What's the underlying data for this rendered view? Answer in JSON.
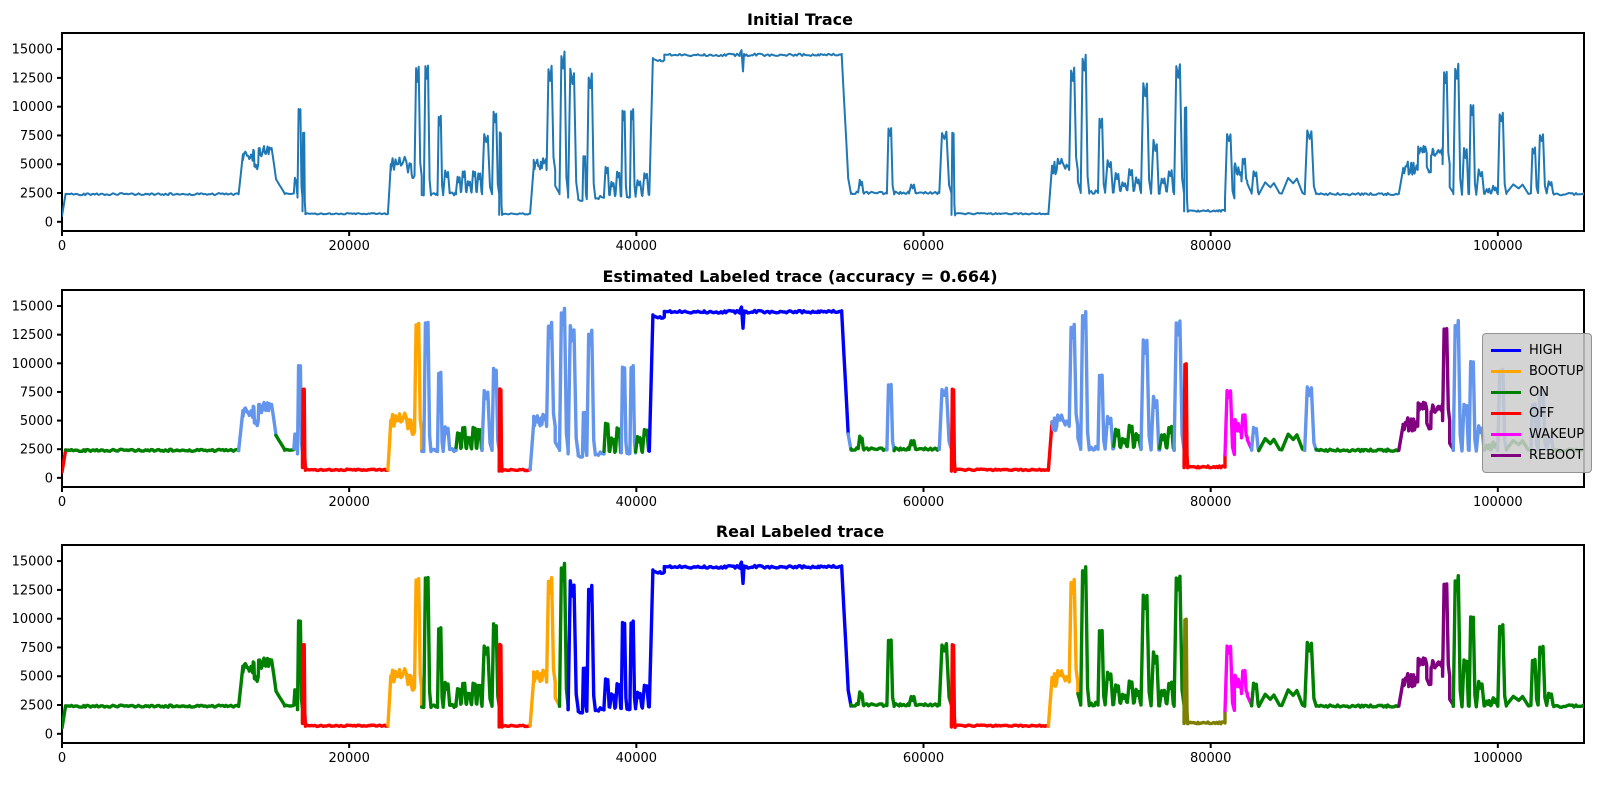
{
  "figure": {
    "background": "#ffffff"
  },
  "charts": [
    {
      "id": "initial",
      "title": "Initial Trace",
      "mode": "single"
    },
    {
      "id": "estimated",
      "title": "Estimated Labeled trace (accuracy = 0.664)",
      "mode": "est"
    },
    {
      "id": "real",
      "title": "Real Labeled trace",
      "mode": "real"
    }
  ],
  "chart_data": {
    "type": "line",
    "title_top": "Initial Trace",
    "title_mid": "Estimated Labeled trace (accuracy = 0.664)",
    "title_bottom": "Real Labeled trace",
    "accuracy": 0.664,
    "xlim": [
      0,
      106000
    ],
    "ylim": [
      -800,
      16400
    ],
    "xticks": [
      0,
      20000,
      40000,
      60000,
      80000,
      100000
    ],
    "yticks": [
      0,
      2500,
      5000,
      7500,
      10000,
      12500,
      15000
    ],
    "grid": false,
    "legend_position": "right",
    "initial_color": "#1f77b4",
    "class_colors": {
      "H": "#0000ff",
      "B": "#ffa500",
      "O": "#008000",
      "F": "#ff0000",
      "W": "#ff00ff",
      "R": "#800080",
      "L": "#6495ed",
      "Y": "#808000"
    },
    "legend": [
      {
        "label": "HIGH",
        "key": "H"
      },
      {
        "label": "BOOTUP",
        "key": "B"
      },
      {
        "label": "ON",
        "key": "O"
      },
      {
        "label": "OFF",
        "key": "F"
      },
      {
        "label": "WAKEUP",
        "key": "W"
      },
      {
        "label": "REBOOT",
        "key": "R"
      }
    ],
    "segments": [
      [
        0,
        250,
        "ramp",
        500,
        2400,
        "F",
        "O"
      ],
      [
        250,
        12300,
        "flat",
        2400,
        90,
        "O",
        "O"
      ],
      [
        12300,
        12600,
        "ramp",
        2400,
        5900,
        "L",
        "O"
      ],
      [
        12600,
        13400,
        "noisy",
        5300,
        6300,
        "L",
        "O"
      ],
      [
        13400,
        13700,
        "noisy",
        4500,
        5100,
        "L",
        "O"
      ],
      [
        13700,
        14600,
        "noisy",
        5600,
        6600,
        "L",
        "O"
      ],
      [
        14600,
        14900,
        "ramp",
        6400,
        3800,
        "L",
        "O"
      ],
      [
        14900,
        15500,
        "ramp",
        3700,
        2450,
        "O",
        "O"
      ],
      [
        15500,
        16150,
        "flat",
        2450,
        100,
        "O",
        "O"
      ],
      [
        16150,
        16400,
        "bumps",
        2500,
        [
          3800
        ],
        "L",
        "O"
      ],
      [
        16400,
        16750,
        "spike",
        2100,
        10000,
        "L",
        "O"
      ],
      [
        16750,
        16950,
        "spike",
        900,
        7800,
        "F",
        "F"
      ],
      [
        16950,
        22700,
        "flat",
        700,
        60,
        "F",
        "F"
      ],
      [
        22700,
        22900,
        "ramp",
        700,
        5000,
        "B",
        "B"
      ],
      [
        22900,
        24350,
        "noisy",
        4200,
        5800,
        "B",
        "B"
      ],
      [
        24350,
        24550,
        "noisy",
        3800,
        4600,
        "B",
        "B"
      ],
      [
        24550,
        25050,
        "spike",
        4000,
        13500,
        "B",
        "B"
      ],
      [
        25050,
        25200,
        "flat",
        2300,
        120,
        "L",
        "O"
      ],
      [
        25200,
        25700,
        "spike",
        2300,
        13800,
        "L",
        "O"
      ],
      [
        25700,
        26150,
        "flat",
        2350,
        160,
        "L",
        "O"
      ],
      [
        26150,
        26550,
        "spike",
        2300,
        9300,
        "L",
        "O"
      ],
      [
        26550,
        27050,
        "bumps",
        2400,
        [
          4400
        ],
        "L",
        "O"
      ],
      [
        27050,
        27450,
        "flat",
        2400,
        150,
        "L",
        "O"
      ],
      [
        27450,
        29250,
        "bumps",
        2600,
        [
          3900,
          4400,
          3600,
          4500,
          4200
        ],
        "O",
        "O"
      ],
      [
        29250,
        29950,
        "spike",
        2400,
        7700,
        "L",
        "O"
      ],
      [
        29950,
        30450,
        "spike",
        2400,
        9600,
        "L",
        "O"
      ],
      [
        30450,
        30650,
        "spike",
        600,
        7800,
        "F",
        "F"
      ],
      [
        30650,
        32600,
        "flat",
        700,
        60,
        "F",
        "F"
      ],
      [
        32600,
        32850,
        "ramp",
        700,
        4800,
        "L",
        "B"
      ],
      [
        32850,
        33750,
        "noisy",
        4300,
        5600,
        "L",
        "B"
      ],
      [
        33750,
        34350,
        "spike",
        4500,
        13600,
        "L",
        "B"
      ],
      [
        34350,
        34650,
        "ramp",
        3100,
        2500,
        "L",
        "B"
      ],
      [
        34650,
        35250,
        "spike",
        2400,
        14800,
        "L",
        "O"
      ],
      [
        35250,
        35950,
        "spike",
        2100,
        13300,
        "L",
        "H"
      ],
      [
        35950,
        36250,
        "flat",
        1900,
        160,
        "L",
        "H"
      ],
      [
        36250,
        36550,
        "spike",
        2000,
        5800,
        "L",
        "H"
      ],
      [
        36550,
        37150,
        "spike",
        2000,
        12900,
        "L",
        "H"
      ],
      [
        37150,
        37750,
        "flat",
        2100,
        200,
        "L",
        "H"
      ],
      [
        37750,
        38950,
        "bumps",
        2300,
        [
          4800,
          3500,
          4400
        ],
        "O",
        "H"
      ],
      [
        38950,
        39350,
        "spike",
        2200,
        9800,
        "L",
        "H"
      ],
      [
        39350,
        39550,
        "flat",
        2200,
        150,
        "L",
        "H"
      ],
      [
        39550,
        39950,
        "spike",
        2200,
        9900,
        "L",
        "H"
      ],
      [
        39950,
        40900,
        "bumps",
        2300,
        [
          3600,
          4300
        ],
        "O",
        "H"
      ],
      [
        40900,
        41150,
        "ramp",
        2300,
        14250,
        "H",
        "H"
      ],
      [
        41150,
        41950,
        "flat",
        14050,
        120,
        "H",
        "H"
      ],
      [
        41950,
        47200,
        "flat",
        14500,
        110,
        "H",
        "H"
      ],
      [
        47200,
        47650,
        "bumps",
        14500,
        [
          14850
        ],
        "H",
        "H"
      ],
      [
        47650,
        54300,
        "flat",
        14500,
        110,
        "H",
        "H"
      ],
      [
        54300,
        54750,
        "ramp",
        14450,
        4000,
        "H",
        "H"
      ],
      [
        54750,
        54950,
        "ramp",
        3800,
        2450,
        "L",
        "H"
      ],
      [
        54950,
        55450,
        "flat",
        2500,
        120,
        "O",
        "O"
      ],
      [
        55450,
        55850,
        "bumps",
        2500,
        [
          3600
        ],
        "O",
        "O"
      ],
      [
        55850,
        57450,
        "flat",
        2500,
        130,
        "O",
        "O"
      ],
      [
        57450,
        57950,
        "spike",
        2450,
        8300,
        "L",
        "O"
      ],
      [
        57950,
        59000,
        "flat",
        2500,
        130,
        "O",
        "O"
      ],
      [
        59000,
        59500,
        "bumps",
        2500,
        [
          3300
        ],
        "O",
        "O"
      ],
      [
        59500,
        61100,
        "flat",
        2500,
        130,
        "O",
        "O"
      ],
      [
        61100,
        61950,
        "spike",
        2500,
        8000,
        "L",
        "O"
      ],
      [
        61950,
        62200,
        "spike",
        600,
        7800,
        "F",
        "F"
      ],
      [
        62200,
        68700,
        "flat",
        700,
        60,
        "F",
        "F"
      ],
      [
        68700,
        68950,
        "ramp",
        700,
        4800,
        "F",
        "B"
      ],
      [
        68950,
        70150,
        "noisy",
        4100,
        5600,
        "L",
        "B"
      ],
      [
        70150,
        70750,
        "spike",
        4500,
        13600,
        "L",
        "B"
      ],
      [
        70750,
        70950,
        "ramp",
        3500,
        2600,
        "L",
        "O"
      ],
      [
        70950,
        71550,
        "spike",
        2500,
        14600,
        "L",
        "O"
      ],
      [
        71550,
        72150,
        "flat",
        2600,
        200,
        "L",
        "O"
      ],
      [
        72150,
        72650,
        "spike",
        2500,
        9100,
        "L",
        "O"
      ],
      [
        72650,
        73250,
        "bumps",
        2500,
        [
          5400
        ],
        "L",
        "O"
      ],
      [
        73250,
        75150,
        "bumps",
        2700,
        [
          4200,
          3500,
          4600,
          3800
        ],
        "O",
        "O"
      ],
      [
        75150,
        75850,
        "spike",
        2500,
        12100,
        "L",
        "O"
      ],
      [
        75850,
        76450,
        "bumps",
        2500,
        [
          7000
        ],
        "L",
        "O"
      ],
      [
        76450,
        77450,
        "bumps",
        2600,
        [
          3800,
          4500
        ],
        "O",
        "O"
      ],
      [
        77450,
        78150,
        "spike",
        2400,
        13900,
        "L",
        "O"
      ],
      [
        78150,
        78400,
        "spike",
        900,
        10000,
        "F",
        "Y"
      ],
      [
        78400,
        81000,
        "flat",
        950,
        80,
        "F",
        "Y"
      ],
      [
        81000,
        81650,
        "spike",
        2000,
        7800,
        "W",
        "W"
      ],
      [
        81650,
        82150,
        "noisy",
        3800,
        5200,
        "W",
        "W"
      ],
      [
        82150,
        82550,
        "spike",
        3500,
        5600,
        "W",
        "W"
      ],
      [
        82550,
        82850,
        "ramp",
        3300,
        2500,
        "W",
        "W"
      ],
      [
        82850,
        83350,
        "bumps",
        2500,
        [
          4500
        ],
        "L",
        "O"
      ],
      [
        83350,
        86550,
        "bumps",
        2450,
        [
          3400,
          3800
        ],
        "O",
        "O"
      ],
      [
        86550,
        87350,
        "spike",
        2400,
        8000,
        "L",
        "O"
      ],
      [
        87350,
        93100,
        "flat",
        2400,
        100,
        "O",
        "O"
      ],
      [
        93100,
        93400,
        "ramp",
        2400,
        4600,
        "R",
        "R"
      ],
      [
        93400,
        94450,
        "noisy",
        4100,
        5300,
        "R",
        "R"
      ],
      [
        94450,
        95050,
        "noisy",
        5900,
        6600,
        "R",
        "R"
      ],
      [
        95050,
        95350,
        "noisy",
        4200,
        4800,
        "R",
        "R"
      ],
      [
        95350,
        96150,
        "noisy",
        5700,
        6500,
        "R",
        "R"
      ],
      [
        96150,
        96650,
        "spike",
        5000,
        13400,
        "R",
        "R"
      ],
      [
        96650,
        96900,
        "ramp",
        3000,
        2500,
        "R",
        "R"
      ],
      [
        96900,
        97500,
        "spike",
        2400,
        13800,
        "L",
        "O"
      ],
      [
        97500,
        98000,
        "bumps",
        2400,
        [
          6300
        ],
        "L",
        "O"
      ],
      [
        98000,
        98500,
        "spike",
        2400,
        10300,
        "L",
        "O"
      ],
      [
        98500,
        99100,
        "bumps",
        2400,
        [
          4500
        ],
        "L",
        "O"
      ],
      [
        99100,
        100000,
        "bumps",
        2450,
        [
          2900,
          3100
        ],
        "O",
        "O"
      ],
      [
        100000,
        100600,
        "spike",
        2400,
        9700,
        "L",
        "O"
      ],
      [
        100600,
        102300,
        "bumps",
        2450,
        [
          3300
        ],
        "O",
        "O"
      ],
      [
        102300,
        102800,
        "spike",
        2500,
        6600,
        "L",
        "O"
      ],
      [
        102800,
        103400,
        "spike",
        2500,
        7800,
        "L",
        "O"
      ],
      [
        103400,
        103900,
        "bumps",
        2450,
        [
          3600
        ],
        "L",
        "O"
      ],
      [
        103900,
        106000,
        "flat",
        2400,
        110,
        "O",
        "O"
      ]
    ]
  }
}
